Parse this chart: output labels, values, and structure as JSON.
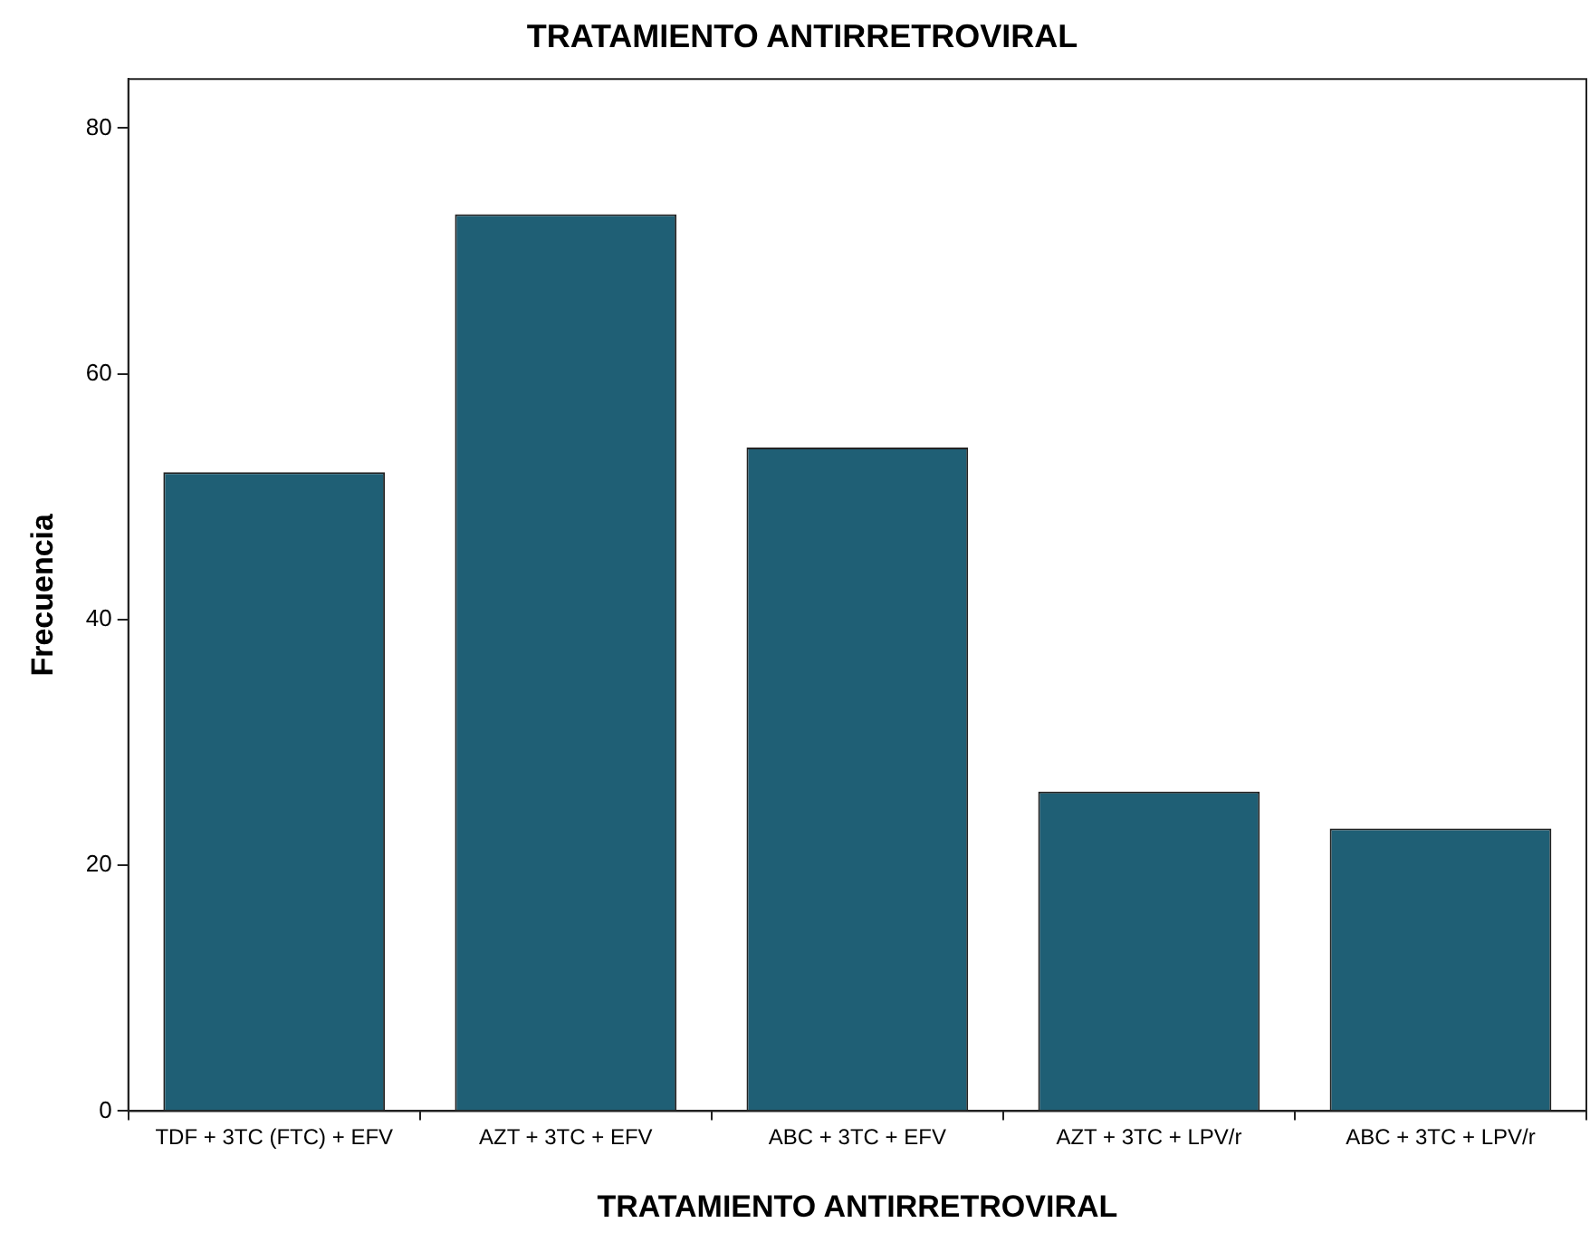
{
  "chart_data": {
    "type": "bar",
    "title": "TRATAMIENTO ANTIRRETROVIRAL",
    "xlabel": "TRATAMIENTO ANTIRRETROVIRAL",
    "ylabel": "Frecuencia",
    "categories": [
      "TDF + 3TC (FTC) + EFV",
      "AZT + 3TC + EFV",
      "ABC + 3TC + EFV",
      "AZT + 3TC + LPV/r",
      "ABC + 3TC + LPV/r"
    ],
    "values": [
      52,
      73,
      54,
      26,
      23
    ],
    "color": "#1f5f75",
    "ylim": [
      0,
      84
    ],
    "yticks": [
      0,
      20,
      40,
      60,
      80
    ],
    "grid": false,
    "legend": false
  }
}
